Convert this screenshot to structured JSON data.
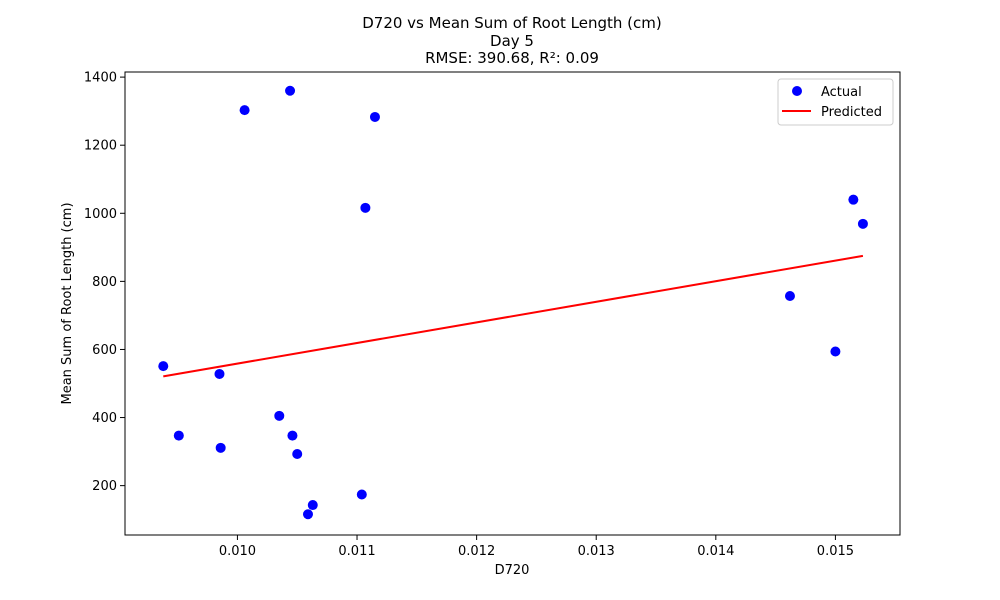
{
  "chart_data": {
    "type": "scatter",
    "title": "D720 vs Mean Sum of Root Length (cm)",
    "subtitle": "Day 5",
    "metrics": "RMSE: 390.68, R²: 0.09",
    "xlabel": "D720",
    "ylabel": "Mean Sum of Root Length (cm)",
    "xlim": [
      0.00906,
      0.01554
    ],
    "ylim": [
      55,
      1415
    ],
    "xticks": [
      0.01,
      0.011,
      0.012,
      0.013,
      0.014,
      0.015
    ],
    "xtick_labels": [
      "0.010",
      "0.011",
      "0.012",
      "0.013",
      "0.014",
      "0.015"
    ],
    "yticks": [
      200,
      400,
      600,
      800,
      1000,
      1200,
      1400
    ],
    "ytick_labels": [
      "200",
      "400",
      "600",
      "800",
      "1000",
      "1200",
      "1400"
    ],
    "grid": false,
    "legend_position": "top-right",
    "series": [
      {
        "name": "Actual",
        "kind": "scatter",
        "color": "#0000ff",
        "points": [
          {
            "x": 0.00938,
            "y": 551
          },
          {
            "x": 0.00951,
            "y": 347
          },
          {
            "x": 0.00985,
            "y": 528
          },
          {
            "x": 0.00986,
            "y": 311
          },
          {
            "x": 0.01006,
            "y": 1303
          },
          {
            "x": 0.01035,
            "y": 405
          },
          {
            "x": 0.01044,
            "y": 1360
          },
          {
            "x": 0.01046,
            "y": 347
          },
          {
            "x": 0.0105,
            "y": 293
          },
          {
            "x": 0.01059,
            "y": 116
          },
          {
            "x": 0.01063,
            "y": 143
          },
          {
            "x": 0.01104,
            "y": 174
          },
          {
            "x": 0.01107,
            "y": 1016
          },
          {
            "x": 0.01115,
            "y": 1283
          },
          {
            "x": 0.01462,
            "y": 757
          },
          {
            "x": 0.015,
            "y": 594
          },
          {
            "x": 0.01515,
            "y": 1040
          },
          {
            "x": 0.01523,
            "y": 969
          }
        ]
      },
      {
        "name": "Predicted",
        "kind": "line",
        "color": "#ff0000",
        "points": [
          {
            "x": 0.00938,
            "y": 521
          },
          {
            "x": 0.01523,
            "y": 875
          }
        ]
      }
    ]
  }
}
